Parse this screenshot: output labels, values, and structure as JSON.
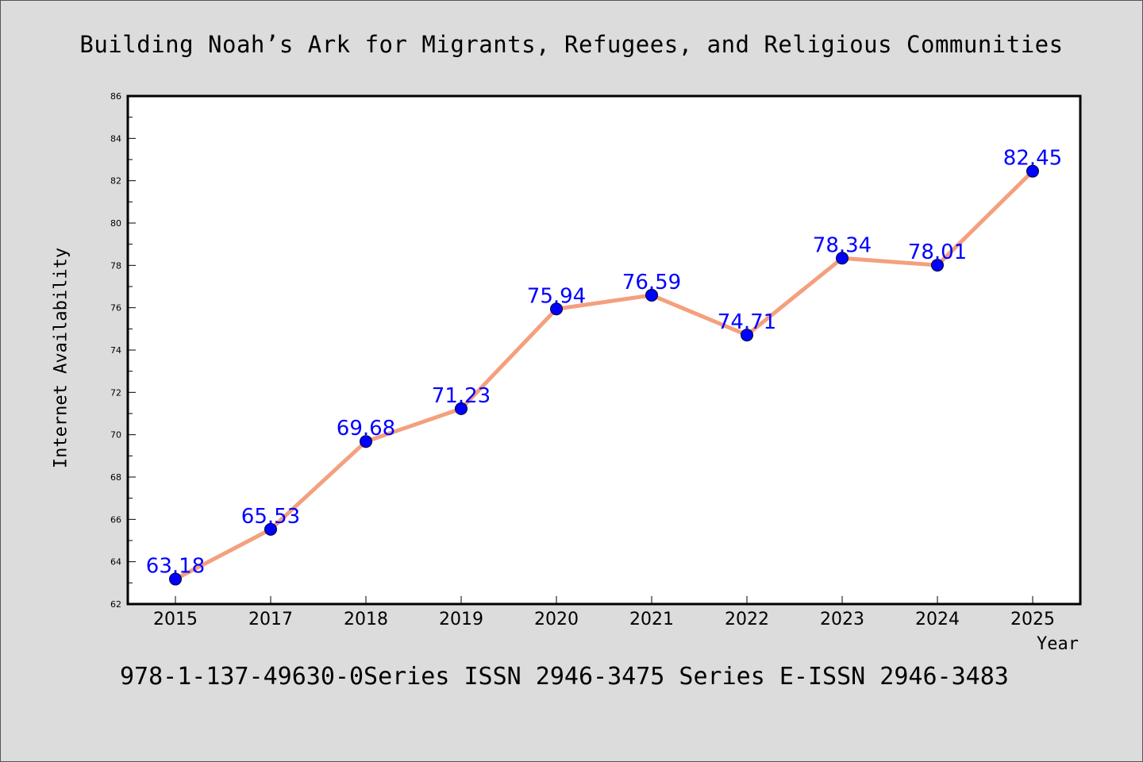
{
  "page": {
    "title": "Building Noah’s Ark for Migrants, Refugees, and Religious Communities",
    "footer": "978-1-137-49630-0Series ISSN 2946-3475 Series E-ISSN 2946-3483"
  },
  "chart_data": {
    "type": "line",
    "title": "Building Noah’s Ark for Migrants, Refugees, and Religious Communities",
    "xlabel": "Year",
    "ylabel": "Internet Availability",
    "categories": [
      "2015",
      "2017",
      "2018",
      "2019",
      "2020",
      "2021",
      "2022",
      "2023",
      "2024",
      "2025"
    ],
    "series": [
      {
        "values": [
          63.18,
          65.53,
          69.68,
          71.23,
          75.94,
          76.59,
          74.71,
          78.34,
          78.01,
          82.45
        ],
        "data_labels": [
          "63.18",
          "65.53",
          "69.68",
          "71.23",
          "75.94",
          "76.59",
          "74.71",
          "78.34",
          "78.01",
          "82.45"
        ],
        "line_color": "#f4a07e",
        "marker_color": "#0000ff",
        "label_color": "#0000ff"
      }
    ],
    "ylim": [
      62,
      86
    ],
    "yticks": [
      62,
      64,
      66,
      68,
      70,
      72,
      74,
      76,
      78,
      80,
      82,
      84,
      86
    ],
    "grid": false,
    "legend": "none"
  }
}
